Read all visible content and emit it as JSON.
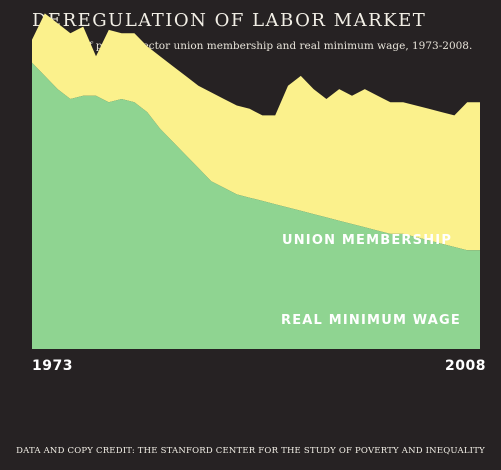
{
  "header": {
    "title": "DEREGULATION OF LABOR MARKET",
    "subtitle": "Declined of private-sector union membership and real minimum wage, 1973-2008."
  },
  "footer": {
    "credit": "DATA AND COPY CREDIT: THE STANFORD CENTER FOR THE STUDY OF POVERTY AND INEQUALITY"
  },
  "colors": {
    "background": "#262223",
    "union": "#fbf18c",
    "wage": "#8fd491",
    "label_text": "#ffffff"
  },
  "chart_data": {
    "type": "area",
    "stacked": true,
    "title": "DEREGULATION OF LABOR MARKET",
    "x_start_label": "1973",
    "x_end_label": "2008",
    "x": [
      1973,
      1974,
      1975,
      1976,
      1977,
      1978,
      1979,
      1980,
      1981,
      1982,
      1983,
      1984,
      1985,
      1986,
      1987,
      1988,
      1989,
      1990,
      1991,
      1992,
      1993,
      1994,
      1995,
      1996,
      1997,
      1998,
      1999,
      2000,
      2001,
      2002,
      2003,
      2004,
      2005,
      2006,
      2007,
      2008
    ],
    "ylim": [
      0,
      100
    ],
    "series": [
      {
        "name": "REAL MINIMUM WAGE",
        "label": "REAL MINIMUM WAGE",
        "values": [
          87,
          83,
          79,
          76,
          77,
          77,
          75,
          76,
          75,
          72,
          67,
          63,
          59,
          55,
          51,
          49,
          47,
          46,
          45,
          44,
          43,
          42,
          41,
          40,
          39,
          38,
          37,
          36,
          35,
          35,
          34,
          33,
          32,
          31,
          30,
          30
        ]
      },
      {
        "name": "UNION MEMBERSHIP",
        "label": "UNION MEMBERSHIP",
        "values": [
          7,
          19,
          20,
          20,
          21,
          12,
          22,
          20,
          21,
          20,
          22,
          23,
          24,
          25,
          27,
          27,
          27,
          27,
          26,
          27,
          37,
          41,
          38,
          36,
          40,
          39,
          42,
          41,
          40,
          40,
          40,
          40,
          40,
          40,
          45,
          45
        ]
      }
    ]
  }
}
